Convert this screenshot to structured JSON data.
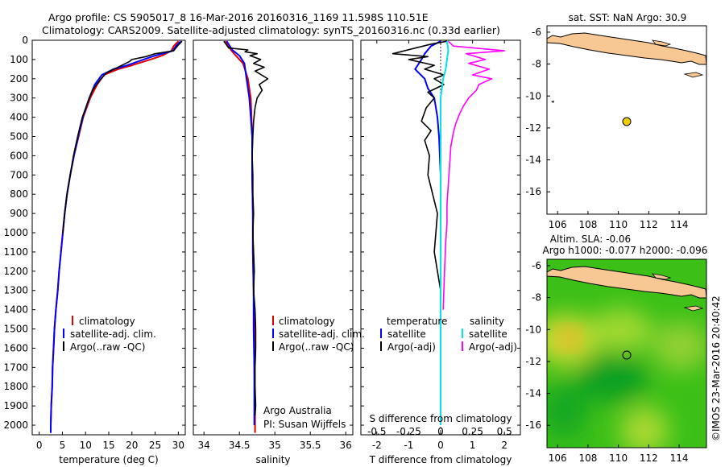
{
  "header": {
    "line1": "Argo profile: CS 5905017_8 16-Mar-2016 20160316_1169 11.598S 110.51E",
    "line2": "Climatology: CARS2009. Satellite-adjusted climatology: synTS_20160316.nc (0.33d earlier)"
  },
  "depth_ticks": [
    "0",
    "100",
    "200",
    "300",
    "400",
    "500",
    "600",
    "700",
    "800",
    "900",
    "1000",
    "1100",
    "1200",
    "1300",
    "1400",
    "1500",
    "1600",
    "1700",
    "1800",
    "1900",
    "2000"
  ],
  "panels": {
    "temperature": {
      "xlabel": "temperature (deg C)",
      "xticks": [
        "0",
        "5",
        "10",
        "15",
        "20",
        "25",
        "30"
      ],
      "legend": [
        "climatology",
        "satellite-adj. clim.",
        "Argo(..raw -QC)"
      ]
    },
    "salinity": {
      "xlabel": "salinity",
      "xticks": [
        "34",
        "34.5",
        "35",
        "35.5",
        "36"
      ],
      "legend": [
        "climatology",
        "satellite-adj. clim.",
        "Argo(..raw -QC)"
      ],
      "note1": "Argo Australia",
      "note2": "PI: Susan Wijffels"
    },
    "difference": {
      "xlabel": "T difference from climatology",
      "xticks": [
        "-2",
        "-1",
        "0",
        "1",
        "2"
      ],
      "top_label": "S difference from climatology",
      "top_ticks": [
        "-0.5",
        "-0.25",
        "0",
        "0.25",
        "0.5"
      ],
      "legend_t_title": "temperature",
      "legend_s_title": "salinity",
      "legend_t": [
        "satellite",
        "Argo(-adj)"
      ],
      "legend_s": [
        "satellite",
        "Argo(-adj)"
      ]
    }
  },
  "maps": {
    "sst": {
      "title": "sat. SST: NaN Argo: 30.9",
      "yticks": [
        "-6",
        "-8",
        "-10",
        "-12",
        "-14",
        "-16"
      ],
      "xticks": [
        "106",
        "108",
        "110",
        "112",
        "114"
      ]
    },
    "sla": {
      "title1": "Altim. SLA: -0.06",
      "title2": "Argo h1000: -0.077 h2000: -0.096",
      "yticks": [
        "-6",
        "-8",
        "-10",
        "-12",
        "-14",
        "-16"
      ],
      "xticks": [
        "106",
        "108",
        "110",
        "112",
        "114"
      ]
    },
    "credit": "©IMOS 23-Mar-2016 20:40:42"
  },
  "colors": {
    "climatology": "#e00000",
    "satellite": "#0000ff",
    "argo": "#000000",
    "salinity_sat": "#00e5e5",
    "salinity_argo": "#ff00ff",
    "land": "#f7c894",
    "float_marker": "#f0d000",
    "sla_green": "#22b826"
  },
  "chart_data": [
    {
      "type": "line",
      "panel": "temperature",
      "xlabel": "temperature (deg C)",
      "ylabel": "",
      "xlim": [
        -1.5,
        31.5
      ],
      "ylim": [
        2050,
        0
      ],
      "series": [
        {
          "name": "climatology",
          "points": [
            [
              30,
              5
            ],
            [
              29,
              30
            ],
            [
              28.5,
              55
            ],
            [
              26.5,
              80
            ],
            [
              24,
              100
            ],
            [
              20,
              130
            ],
            [
              17,
              150
            ],
            [
              14,
              180
            ],
            [
              12.5,
              230
            ],
            [
              11,
              300
            ],
            [
              9.5,
              400
            ],
            [
              8.5,
              500
            ],
            [
              7.5,
              600
            ],
            [
              6.7,
              700
            ],
            [
              6,
              800
            ],
            [
              5.5,
              900
            ],
            [
              5.1,
              1000
            ],
            [
              4.7,
              1100
            ],
            [
              4.3,
              1200
            ],
            [
              4,
              1300
            ],
            [
              3.6,
              1400
            ],
            [
              3.3,
              1500
            ],
            [
              3.1,
              1600
            ],
            [
              2.9,
              1700
            ],
            [
              2.8,
              1800
            ],
            [
              2.6,
              1900
            ],
            [
              2.5,
              2000
            ],
            [
              2.5,
              2040
            ]
          ]
        },
        {
          "name": "satellite-adj. clim.",
          "points": [
            [
              30.5,
              5
            ],
            [
              29.5,
              30
            ],
            [
              28.8,
              55
            ],
            [
              25,
              80
            ],
            [
              22.5,
              100
            ],
            [
              19,
              130
            ],
            [
              16,
              150
            ],
            [
              13.5,
              180
            ],
            [
              12,
              230
            ],
            [
              10.8,
              300
            ],
            [
              9.4,
              400
            ],
            [
              8.4,
              500
            ],
            [
              7.5,
              600
            ],
            [
              6.7,
              700
            ],
            [
              6,
              800
            ],
            [
              5.5,
              900
            ],
            [
              5.1,
              1000
            ],
            [
              4.7,
              1100
            ],
            [
              4.3,
              1200
            ],
            [
              4,
              1300
            ],
            [
              3.6,
              1400
            ],
            [
              3.3,
              1500
            ],
            [
              3.1,
              1600
            ],
            [
              2.9,
              1700
            ],
            [
              2.8,
              1800
            ],
            [
              2.6,
              1900
            ],
            [
              2.5,
              2000
            ],
            [
              2.5,
              2040
            ]
          ]
        },
        {
          "name": "Argo(..raw -QC)",
          "points": [
            [
              30.8,
              5
            ],
            [
              29.8,
              30
            ],
            [
              29,
              55
            ],
            [
              25,
              70
            ],
            [
              23,
              85
            ],
            [
              20,
              100
            ],
            [
              19.5,
              110
            ],
            [
              17,
              140
            ],
            [
              14.5,
              170
            ],
            [
              13,
              210
            ],
            [
              11.5,
              260
            ],
            [
              10.5,
              320
            ],
            [
              9.3,
              400
            ],
            [
              8.3,
              500
            ],
            [
              7.4,
              600
            ],
            [
              6.7,
              700
            ],
            [
              6,
              800
            ],
            [
              5.5,
              900
            ],
            [
              5.1,
              1000
            ]
          ]
        }
      ]
    },
    {
      "type": "line",
      "panel": "salinity",
      "xlabel": "salinity",
      "ylabel": "",
      "xlim": [
        33.85,
        36.1
      ],
      "ylim": [
        2050,
        0
      ],
      "series": [
        {
          "name": "climatology",
          "points": [
            [
              34.3,
              5
            ],
            [
              34.38,
              50
            ],
            [
              34.45,
              80
            ],
            [
              34.55,
              120
            ],
            [
              34.62,
              200
            ],
            [
              34.64,
              250
            ],
            [
              34.66,
              300
            ],
            [
              34.67,
              400
            ],
            [
              34.68,
              500
            ],
            [
              34.68,
              700
            ],
            [
              34.69,
              900
            ],
            [
              34.69,
              1100
            ],
            [
              34.7,
              1300
            ],
            [
              34.71,
              1500
            ],
            [
              34.71,
              1700
            ],
            [
              34.72,
              1900
            ],
            [
              34.72,
              2040
            ]
          ]
        },
        {
          "name": "satellite-adj. clim.",
          "points": [
            [
              34.32,
              5
            ],
            [
              34.4,
              50
            ],
            [
              34.5,
              80
            ],
            [
              34.57,
              120
            ],
            [
              34.6,
              200
            ],
            [
              34.62,
              250
            ],
            [
              34.64,
              300
            ],
            [
              34.66,
              400
            ],
            [
              34.68,
              500
            ],
            [
              34.68,
              700
            ],
            [
              34.69,
              900
            ],
            [
              34.69,
              1100
            ],
            [
              34.7,
              1300
            ],
            [
              34.7,
              1500
            ],
            [
              34.71,
              1700
            ],
            [
              34.71,
              1900
            ],
            [
              34.71,
              2000
            ]
          ]
        },
        {
          "name": "Argo(..raw -QC)",
          "points": [
            [
              34.28,
              5
            ],
            [
              34.35,
              40
            ],
            [
              34.62,
              50
            ],
            [
              34.58,
              60
            ],
            [
              34.75,
              70
            ],
            [
              34.65,
              80
            ],
            [
              34.8,
              100
            ],
            [
              34.7,
              120
            ],
            [
              34.85,
              140
            ],
            [
              34.72,
              160
            ],
            [
              34.9,
              200
            ],
            [
              34.78,
              230
            ],
            [
              34.82,
              260
            ],
            [
              34.75,
              300
            ],
            [
              34.72,
              350
            ],
            [
              34.7,
              420
            ],
            [
              34.69,
              500
            ],
            [
              34.68,
              600
            ],
            [
              34.69,
              700
            ],
            [
              34.69,
              800
            ],
            [
              34.7,
              900
            ],
            [
              34.69,
              1000
            ],
            [
              34.7,
              1100
            ],
            [
              34.71,
              1200
            ],
            [
              34.7,
              1300
            ],
            [
              34.72,
              1400
            ],
            [
              34.73,
              1500
            ],
            [
              34.73,
              1600
            ],
            [
              34.72,
              1700
            ],
            [
              34.72,
              1800
            ],
            [
              34.73,
              1900
            ],
            [
              34.72,
              1950
            ]
          ]
        }
      ]
    },
    {
      "type": "line",
      "panel": "difference",
      "xlabel": "T difference from climatology",
      "top_axis_label": "S difference from climatology",
      "xlim": [
        -2.5,
        2.5
      ],
      "top_xlim": [
        -0.625,
        0.625
      ],
      "ylim": [
        2050,
        0
      ],
      "series": [
        {
          "name": "temperature satellite",
          "axis": "T",
          "points": [
            [
              0,
              5
            ],
            [
              -0.3,
              30
            ],
            [
              -0.5,
              70
            ],
            [
              -0.6,
              100
            ],
            [
              -0.8,
              150
            ],
            [
              -0.5,
              200
            ],
            [
              -0.4,
              250
            ],
            [
              -0.2,
              300
            ],
            [
              -0.15,
              350
            ],
            [
              -0.1,
              400
            ],
            [
              -0.05,
              500
            ],
            [
              0,
              700
            ],
            [
              0,
              1000
            ],
            [
              0,
              1500
            ],
            [
              0,
              2000
            ]
          ]
        },
        {
          "name": "temperature Argo(-adj)",
          "axis": "T",
          "points": [
            [
              0.2,
              5
            ],
            [
              -0.3,
              20
            ],
            [
              -1.5,
              70
            ],
            [
              -0.4,
              85
            ],
            [
              -1,
              100
            ],
            [
              -0.2,
              130
            ],
            [
              -0.5,
              150
            ],
            [
              0.1,
              180
            ],
            [
              -0.2,
              200
            ],
            [
              0.1,
              230
            ],
            [
              -0.4,
              270
            ],
            [
              -0.2,
              300
            ],
            [
              -0.45,
              350
            ],
            [
              -0.6,
              420
            ],
            [
              -0.3,
              470
            ],
            [
              -0.5,
              520
            ],
            [
              -0.35,
              600
            ],
            [
              -0.4,
              700
            ],
            [
              -0.25,
              800
            ],
            [
              -0.1,
              900
            ],
            [
              -0.15,
              1000
            ],
            [
              -0.2,
              1100
            ],
            [
              -0.1,
              1200
            ],
            [
              0,
              1300
            ],
            [
              0,
              1400
            ]
          ]
        },
        {
          "name": "salinity satellite",
          "axis": "S",
          "points": [
            [
              0.05,
              5
            ],
            [
              0.06,
              50
            ],
            [
              0.05,
              100
            ],
            [
              0.04,
              150
            ],
            [
              0.02,
              200
            ],
            [
              0.01,
              250
            ],
            [
              0,
              300
            ],
            [
              0,
              400
            ],
            [
              0,
              600
            ],
            [
              0,
              900
            ],
            [
              0,
              1200
            ],
            [
              0,
              1500
            ],
            [
              0,
              1800
            ],
            [
              0,
              2000
            ]
          ]
        },
        {
          "name": "salinity Argo(-adj)",
          "axis": "S",
          "points": [
            [
              0.06,
              5
            ],
            [
              0.1,
              30
            ],
            [
              0.5,
              55
            ],
            [
              0.2,
              70
            ],
            [
              0.35,
              100
            ],
            [
              0.22,
              120
            ],
            [
              0.38,
              150
            ],
            [
              0.25,
              180
            ],
            [
              0.4,
              200
            ],
            [
              0.3,
              230
            ],
            [
              0.28,
              260
            ],
            [
              0.22,
              300
            ],
            [
              0.18,
              340
            ],
            [
              0.15,
              380
            ],
            [
              0.12,
              430
            ],
            [
              0.1,
              480
            ],
            [
              0.08,
              550
            ],
            [
              0.07,
              650
            ],
            [
              0.06,
              750
            ],
            [
              0.05,
              850
            ],
            [
              0.05,
              950
            ],
            [
              0.04,
              1050
            ],
            [
              0.03,
              1200
            ],
            [
              0.02,
              1400
            ]
          ]
        }
      ]
    }
  ]
}
